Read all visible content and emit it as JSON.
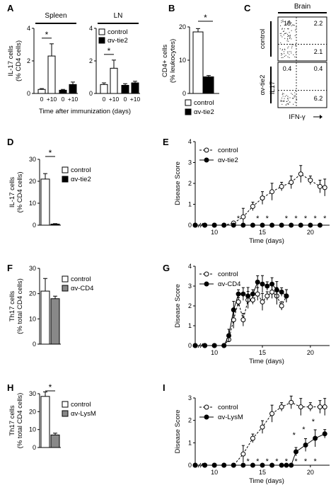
{
  "chart_data": [
    {
      "panel": "A",
      "type": "bar",
      "subplots": [
        {
          "title": "Spleen",
          "categories": [
            "0",
            "+10",
            "0",
            "+10"
          ],
          "series": [
            {
              "name": "control",
              "values": [
                0.25,
                2.3
              ]
            },
            {
              "name": "αv-tie2",
              "values": [
                0.2,
                0.55
              ]
            }
          ],
          "errors": {
            "control": [
              0.05,
              0.75
            ],
            "αv-tie2": [
              0.05,
              0.15
            ]
          },
          "significance": "*",
          "ylim": [
            0,
            4
          ],
          "yticks": [
            "0",
            "2",
            "4"
          ]
        },
        {
          "title": "LN",
          "categories": [
            "0",
            "+10",
            "0",
            "+10"
          ],
          "series": [
            {
              "name": "control",
              "values": [
                0.55,
                1.55
              ]
            },
            {
              "name": "αv-tie2",
              "values": [
                0.5,
                0.65
              ]
            }
          ],
          "errors": {
            "control": [
              0.1,
              0.5
            ],
            "αv-tie2": [
              0.1,
              0.1
            ]
          },
          "significance": "*",
          "ylim": [
            0,
            4
          ],
          "yticks": [
            "0",
            "2",
            "4"
          ]
        }
      ],
      "ylabel": [
        "IL-17 cells",
        "(% CD4 cells)"
      ],
      "xlabel": "Time after immunization (days)",
      "legend": [
        "control",
        "αv-tie2"
      ]
    },
    {
      "panel": "B",
      "type": "bar",
      "categories": [
        "control",
        "αv-tie2"
      ],
      "values": [
        18.5,
        5
      ],
      "errors": [
        1,
        0.4
      ],
      "significance": "*",
      "ylim": [
        0,
        20
      ],
      "yticks": [
        "0",
        "10",
        "20"
      ],
      "ylabel": [
        "CD4+ cells",
        "(% leukocytes)"
      ],
      "legend": [
        "control",
        "αv-tie2"
      ]
    },
    {
      "panel": "C",
      "type": "scatter",
      "title": "Brain",
      "rows": [
        "control",
        "αv-tie2"
      ],
      "quadrants": {
        "control": [
          "18",
          "2.2",
          "2.1"
        ],
        "αv-tie2": [
          "0.4",
          "0.4",
          "6.2"
        ]
      },
      "ylabel": "IL17",
      "xlabel": "IFN-γ"
    },
    {
      "panel": "D",
      "type": "bar",
      "categories": [
        "control",
        "αv-tie2"
      ],
      "values": [
        21,
        0.5
      ],
      "errors": [
        2.5,
        0.2
      ],
      "significance": "*",
      "ylim": [
        0,
        30
      ],
      "yticks": [
        "0",
        "10",
        "20",
        "30"
      ],
      "ylabel": [
        "IL-17 cells",
        "(% CD4 cells)"
      ],
      "legend": [
        "control",
        "αv-tie2"
      ]
    },
    {
      "panel": "E",
      "type": "line",
      "x": [
        8,
        9,
        10,
        11,
        12,
        13,
        14,
        15,
        16,
        17,
        18,
        19,
        20,
        21
      ],
      "series": [
        {
          "name": "control",
          "values": [
            0,
            0,
            0,
            0,
            0.1,
            0.4,
            0.9,
            1.3,
            1.6,
            1.85,
            2.05,
            2.45,
            2.15,
            1.85,
            1.8
          ],
          "x": [
            8,
            9,
            10,
            11,
            12,
            13,
            14,
            15,
            16,
            17,
            18,
            19,
            20,
            21,
            21.5
          ]
        },
        {
          "name": "αv-tie2",
          "values": [
            0,
            0,
            0,
            0,
            0,
            0,
            0,
            0,
            0,
            0,
            0,
            0,
            0,
            0
          ],
          "x": [
            8,
            9,
            10,
            11,
            12,
            13,
            14,
            15,
            16,
            17,
            18,
            19,
            20,
            21
          ]
        }
      ],
      "ylim": [
        0,
        4
      ],
      "yticks": [
        "0",
        "1",
        "2",
        "3",
        "4"
      ],
      "xticks": [
        "10",
        "15",
        "20"
      ],
      "ylabel": "Disease Score",
      "xlabel": "Time (days)"
    },
    {
      "panel": "F",
      "type": "bar",
      "categories": [
        "control",
        "αv-CD4"
      ],
      "values": [
        21,
        18
      ],
      "errors": [
        5,
        1
      ],
      "ylim": [
        0,
        30
      ],
      "yticks": [
        "0",
        "10",
        "20",
        "30"
      ],
      "ylabel": [
        "Th17 cells",
        "(% total CD4 cells)"
      ],
      "legend": [
        "control",
        "αv-CD4"
      ]
    },
    {
      "panel": "G",
      "type": "line",
      "x": [
        8,
        9,
        10,
        11,
        11.5,
        12,
        12.5,
        13,
        13.5,
        14,
        14.5,
        15,
        15.5,
        16,
        16.5,
        17,
        17.5
      ],
      "series": [
        {
          "name": "control",
          "values": [
            0,
            0,
            0,
            0,
            0.3,
            1.3,
            2.2,
            1.3,
            2.3,
            2.3,
            2.6,
            2.2,
            2.5,
            2.7,
            2.5,
            2.0,
            2.5
          ]
        },
        {
          "name": "αv-CD4",
          "values": [
            0,
            0,
            0,
            0,
            0.5,
            1.8,
            2.6,
            2.6,
            2.5,
            2.6,
            3.2,
            3.1,
            3.0,
            3.1,
            2.8,
            2.7,
            2.5
          ]
        }
      ],
      "ylim": [
        0,
        4
      ],
      "yticks": [
        "0",
        "1",
        "2",
        "3",
        "4"
      ],
      "xticks": [
        "10",
        "15",
        "20"
      ],
      "ylabel": "Disease Score",
      "xlabel": "Time (days)"
    },
    {
      "panel": "H",
      "type": "bar",
      "categories": [
        "control",
        "αv-LysM"
      ],
      "values": [
        28.5,
        7
      ],
      "errors": [
        2.5,
        1
      ],
      "significance": "*",
      "ylim": [
        0,
        30
      ],
      "yticks": [
        "0",
        "10",
        "20",
        "30"
      ],
      "ylabel": [
        "Th17 cells",
        "(% total CD4 cells)"
      ],
      "legend": [
        "control",
        "αv-LysM"
      ]
    },
    {
      "panel": "I",
      "type": "line",
      "x": [
        8,
        9,
        10,
        11,
        12,
        13,
        14,
        15,
        16,
        17,
        18,
        19,
        20,
        21
      ],
      "series": [
        {
          "name": "control",
          "values": [
            0,
            0,
            0,
            0,
            0,
            0.5,
            1.2,
            1.7,
            2.3,
            2.6,
            2.8,
            2.6,
            2.6,
            2.6,
            2.6
          ],
          "x": [
            8,
            9,
            10,
            11,
            12,
            13,
            14,
            15,
            16,
            17,
            18,
            19,
            20,
            21,
            21.5
          ]
        },
        {
          "name": "αv-LysM",
          "values": [
            0,
            0,
            0,
            0,
            0,
            0,
            0,
            0,
            0,
            0,
            0,
            0,
            0.6,
            0.9,
            1.2,
            1.4
          ],
          "x": [
            8,
            9,
            10,
            11,
            12,
            13,
            14,
            15,
            16,
            17,
            17.5,
            18,
            18.5,
            19.5,
            20.5,
            21.5
          ]
        }
      ],
      "ylim": [
        0,
        3
      ],
      "yticks": [
        "0",
        "1",
        "2",
        "3"
      ],
      "xticks": [
        "10",
        "15",
        "20"
      ],
      "ylabel": "Disease Score",
      "xlabel": "Time (days)"
    }
  ]
}
